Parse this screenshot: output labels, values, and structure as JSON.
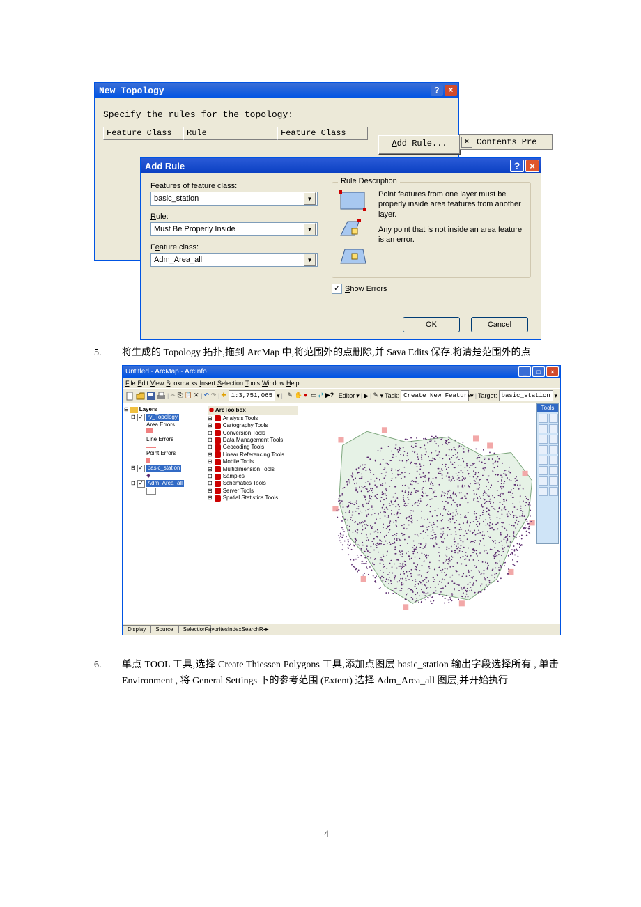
{
  "new_topology": {
    "title": "New Topology",
    "instruction": "Specify the rules for the topology:",
    "columns": [
      "Feature Class",
      "Rule",
      "Feature Class"
    ],
    "add_rule_button": "Add Rule...",
    "dock_label": "Contents  Pre"
  },
  "add_rule": {
    "title": "Add Rule",
    "feature_class_label": "Features of feature class:",
    "feature_class_value": "basic_station",
    "rule_label": "Rule:",
    "rule_value": "Must Be Properly Inside",
    "feature_class2_label": "Feature class:",
    "feature_class2_value": "Adm_Area_all",
    "desc_title": "Rule Description",
    "desc_text1": "Point features from one layer must be properly inside area features from another layer.",
    "desc_text2": "Any point that is not inside an area feature is an error.",
    "show_errors": "Show Errors",
    "ok": "OK",
    "cancel": "Cancel"
  },
  "doc": {
    "item5_num": "5.",
    "item5_text": "将生成的 Topology 拓扑,拖到 ArcMap 中,将范围外的点删除,并 Sava Edits 保存.将清楚范围外的点",
    "item6_num": "6.",
    "item6_text": "单点 TOOL 工具,选择 Create Thiessen Polygons 工具,添加点图层 basic_station 输出字段选择所有 , 单击 Environment , 将 General Settings 下的参考范围 (Extent) 选择 Adm_Area_all 图层,并开始执行",
    "page_num": "4"
  },
  "arcmap": {
    "title": "Untitled - ArcMap - ArcInfo",
    "menus": [
      "File",
      "Edit",
      "View",
      "Bookmarks",
      "Insert",
      "Selection",
      "Tools",
      "Window",
      "Help"
    ],
    "scale": "1:3,751,065",
    "editor_label": "Editor",
    "task_label": "Task:",
    "task_value": "Create New Feature",
    "target_label": "Target:",
    "target_value": "basic_station",
    "tools_title": "Tools",
    "toc": {
      "layers": "Layers",
      "topo": "ry_Topology",
      "area_errors": "Area Errors",
      "line_errors": "Line Errors",
      "point_errors": "Point Errors",
      "basic": "basic_station",
      "adm": "Adm_Area_all"
    },
    "toc_tabs": [
      "Display",
      "Source",
      "Selection"
    ],
    "toolbox": {
      "hdr": "ArcToolbox",
      "items": [
        "Analysis Tools",
        "Cartography Tools",
        "Conversion Tools",
        "Data Management Tools",
        "Geocoding Tools",
        "Linear Referencing Tools",
        "Mobile Tools",
        "Multidimension Tools",
        "Samples",
        "Schematics Tools",
        "Server Tools",
        "Spatial Statistics Tools"
      ],
      "tabs": [
        "Favorites",
        "Index",
        "Search",
        "Results"
      ]
    },
    "map_colors": {
      "land": "#e6f2e6",
      "points": "#5a2a6e",
      "errors": "#f2a8a8"
    }
  }
}
